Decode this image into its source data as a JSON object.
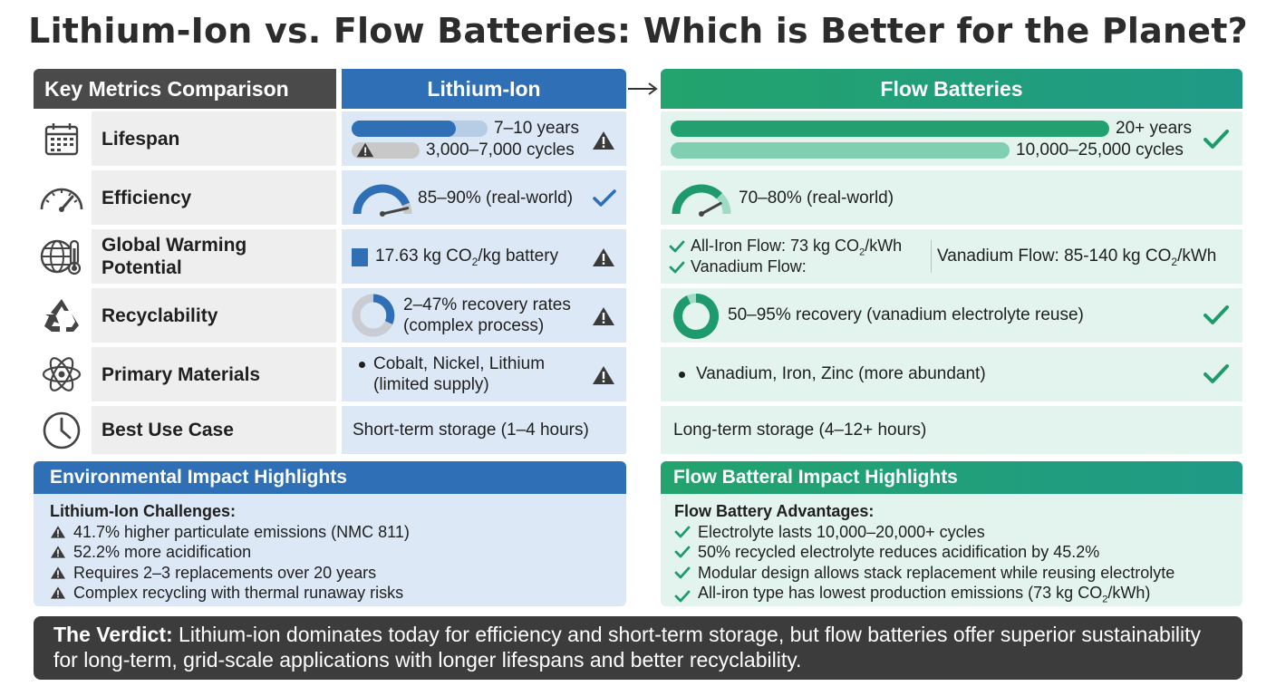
{
  "title": "Lithium-Ion vs. Flow Batteries: Which is Better for the Planet?",
  "headers": {
    "metrics": "Key Metrics Comparison",
    "lithium_ion": "Lithium-Ion",
    "flow": "Flow Batteries"
  },
  "rows": {
    "lifespan": {
      "label": "Lifespan",
      "icon": "calendar-icon",
      "li_years": "7–10 years",
      "li_cycles": "3,000–7,000 cycles",
      "fb_years": "20+ years",
      "fb_cycles": "10,000–25,000 cycles"
    },
    "efficiency": {
      "label": "Efficiency",
      "icon": "gauge-icon",
      "li_text": "85–90% (real-world)",
      "fb_text": "70–80% (real-world)",
      "li_value_pct": 87.5,
      "fb_value_pct": 75
    },
    "gwp": {
      "label_line1": "Global Warming",
      "label_line2": "Potential",
      "icon": "globe-thermometer-icon",
      "li_text_pre": "17.63 kg CO",
      "li_sub": "2",
      "li_text_post": "/kg battery",
      "fb_item1_pre": "All-Iron Flow: 73 kg CO",
      "fb_item1_sub": "2",
      "fb_item1_post": "/kWh",
      "fb_item2": "Vanadium Flow:",
      "fb_side_pre": "Vanadium Flow: 85-140 kg CO",
      "fb_side_sub": "2",
      "fb_side_post": "/kWh"
    },
    "recyclability": {
      "label": "Recyclability",
      "icon": "recycle-icon",
      "li_line1": "2–47% recovery rates",
      "li_line2": "(complex process)",
      "fb_text": "50–95% recovery (vanadium electrolyte reuse)"
    },
    "materials": {
      "label": "Primary Materials",
      "icon": "atom-icon",
      "li_line1": "Cobalt, Nickel, Lithium",
      "li_line2": "(limited supply)",
      "fb_text": "Vanadium, Iron, Zinc (more abundant)"
    },
    "usecase": {
      "label": "Best Use Case",
      "icon": "clock-icon",
      "li_text": "Short-term storage (1–4 hours)",
      "fb_text": "Long-term storage (4–12+ hours)"
    }
  },
  "env_panel": {
    "title": "Environmental Impact Highlights",
    "subtitle": "Lithium-Ion Challenges:",
    "items": [
      "41.7% higher particulate emissions (NMC 811)",
      "52.2% more acidification",
      "Requires 2–3 replacements over 20 years",
      "Complex recycling with thermal runaway risks"
    ]
  },
  "flow_panel": {
    "title": "Flow Batteral Impact Highlights",
    "subtitle": "Flow Battery Advantages:",
    "items": [
      "Electrolyte lasts 10,000–20,000+ cycles",
      "50% recycled electrolyte reduces acidification by 45.2%",
      "Modular design allows stack replacement while reusing electrolyte"
    ],
    "last_item_pre": "All-iron type has lowest production emissions (73 kg CO",
    "last_item_sub": "2",
    "last_item_post": "/kWh)"
  },
  "verdict": {
    "label": "The Verdict:",
    "text": " Lithium-ion dominates today for efficiency and short-term storage, but flow batteries offer superior sustainability for long-term, grid-scale applications with longer lifespans and better recyclability."
  },
  "colors": {
    "li_blue": "#2e6fb5",
    "fb_green": "#1f9a78",
    "warn": "#3a3a3a"
  }
}
